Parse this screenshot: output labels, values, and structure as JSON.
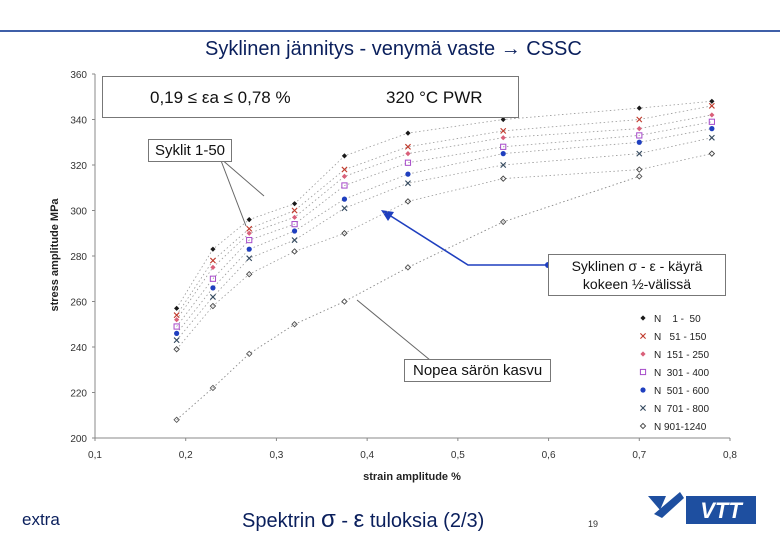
{
  "slide": {
    "title": "Syklinen jännitys - venymä vaste",
    "title_arrow": "→",
    "title_suffix": "CSSC",
    "range_label": "0,19 ≤ εa ≤ 0,78 %",
    "environment_label": "320 °C PWR",
    "callout_cycles": "Syklit 1-50",
    "callout_curve_line1": "Syklinen σ - ε - käyrä",
    "callout_curve_line2": "kokeen ½-välissä",
    "callout_crack": "Nopea särön kasvu",
    "footer_left": "extra",
    "footer_center_prefix": "Spektrin",
    "footer_sigma": "σ",
    "footer_dash": "-",
    "footer_epsilon": "ε",
    "footer_center_suffix": "tuloksia (2/3)",
    "page_number": "19",
    "logo_text": "VTT"
  },
  "chart_data": {
    "type": "scatter",
    "xlabel": "strain amplitude  %",
    "ylabel": "stress amplitude  MPa",
    "xlim": [
      0.1,
      0.8
    ],
    "ylim": [
      200,
      360
    ],
    "xticks": [
      0.1,
      0.2,
      0.3,
      0.4,
      0.5,
      0.6,
      0.7,
      0.8
    ],
    "xtick_labels": [
      "0,1",
      "0,2",
      "0,3",
      "0,4",
      "0,5",
      "0,6",
      "0,7",
      "0,8"
    ],
    "yticks": [
      200,
      220,
      240,
      260,
      280,
      300,
      320,
      340,
      360
    ],
    "ytick_labels": [
      "200",
      "220",
      "240",
      "260",
      "280",
      "300",
      "320",
      "340",
      "360"
    ],
    "grid": false,
    "legend_position": "bottom-right",
    "strain_levels": [
      0.19,
      0.23,
      0.27,
      0.32,
      0.375,
      0.445,
      0.55,
      0.7,
      0.78
    ],
    "series": [
      {
        "name": "N    1 -  50",
        "marker": "diamond",
        "color": "#1a1a1a",
        "y": [
          257,
          283,
          296,
          303,
          324,
          334,
          340,
          345,
          348
        ]
      },
      {
        "name": "N   51 - 150",
        "marker": "x",
        "color": "#c0392b",
        "y": [
          254,
          278,
          292,
          300,
          318,
          328,
          335,
          340,
          346
        ]
      },
      {
        "name": "N  151 - 250",
        "marker": "diamond",
        "color": "#d9607a",
        "y": [
          252,
          275,
          290,
          297,
          315,
          325,
          332,
          336,
          342
        ]
      },
      {
        "name": "N  301 - 400",
        "marker": "square",
        "color": "#a64ac9",
        "y": [
          249,
          270,
          287,
          294,
          311,
          321,
          328,
          333,
          339
        ]
      },
      {
        "name": "N  501 - 600",
        "marker": "circle",
        "color": "#1f3fbf",
        "y": [
          246,
          266,
          283,
          291,
          305,
          316,
          325,
          330,
          336
        ]
      },
      {
        "name": "N  701 - 800",
        "marker": "x",
        "color": "#34495e",
        "y": [
          243,
          262,
          279,
          287,
          301,
          312,
          320,
          325,
          332
        ]
      },
      {
        "name": "N 901-1240",
        "marker": "diamond-open",
        "color": "#444444",
        "y": [
          239,
          258,
          272,
          282,
          290,
          304,
          314,
          318,
          325
        ]
      }
    ],
    "minimum_curve": {
      "x": [
        0.19,
        0.23,
        0.27,
        0.32,
        0.375,
        0.445,
        0.55,
        0.7
      ],
      "y": [
        208,
        222,
        237,
        250,
        260,
        275,
        295,
        315
      ]
    }
  }
}
